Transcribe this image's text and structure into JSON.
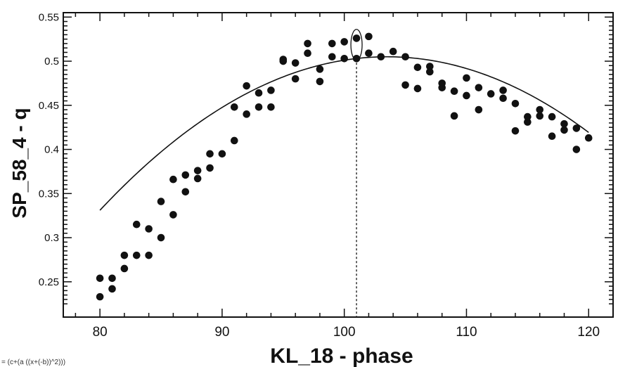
{
  "chart_data": {
    "type": "scatter",
    "title": "",
    "xlabel": "KL_18 - phase",
    "ylabel": "SP_58_4 - q",
    "xlim": [
      77,
      122
    ],
    "ylim": [
      0.21,
      0.555
    ],
    "xticks": [
      80,
      90,
      100,
      110,
      120
    ],
    "xtick_labels": [
      "80",
      "90",
      "100",
      "110",
      "120"
    ],
    "yticks": [
      0.25,
      0.3,
      0.35,
      0.4,
      0.45,
      0.5,
      0.55
    ],
    "ytick_labels": [
      "0.25",
      "0.3",
      "0.35",
      "0.4",
      "0.45",
      "0.5",
      "0.55"
    ],
    "grid": false,
    "legend": "none",
    "formula": "= (c+(a ((x+(-b))^2)))",
    "fit": {
      "type": "quadratic",
      "vertex_x": 103.5,
      "vertex_y": 0.505,
      "a": -0.000315
    },
    "peak_marker_x": 101,
    "circled_point": {
      "x": 101,
      "y": 0.505
    },
    "colors": {
      "points": "#111111",
      "curve": "#111111",
      "axes": "#111111"
    },
    "x": [
      80,
      80,
      81,
      81,
      82,
      82,
      83,
      83,
      84,
      84,
      85,
      85,
      86,
      86,
      87,
      87,
      88,
      88,
      89,
      89,
      90,
      91,
      91,
      92,
      92,
      93,
      93,
      94,
      94,
      95,
      95,
      96,
      96,
      97,
      97,
      98,
      98,
      99,
      99,
      100,
      100,
      101,
      101,
      102,
      102,
      103,
      104,
      105,
      105,
      106,
      106,
      107,
      107,
      108,
      108,
      109,
      109,
      110,
      110,
      111,
      111,
      112,
      113,
      113,
      114,
      114,
      115,
      115,
      116,
      116,
      117,
      117,
      118,
      118,
      119,
      119,
      120
    ],
    "y": [
      0.233,
      0.254,
      0.242,
      0.254,
      0.265,
      0.28,
      0.28,
      0.315,
      0.28,
      0.31,
      0.3,
      0.341,
      0.326,
      0.366,
      0.352,
      0.371,
      0.367,
      0.376,
      0.379,
      0.395,
      0.395,
      0.41,
      0.448,
      0.44,
      0.472,
      0.448,
      0.464,
      0.448,
      0.467,
      0.5,
      0.502,
      0.48,
      0.498,
      0.509,
      0.52,
      0.477,
      0.491,
      0.505,
      0.52,
      0.503,
      0.522,
      0.503,
      0.526,
      0.509,
      0.528,
      0.505,
      0.511,
      0.473,
      0.505,
      0.469,
      0.493,
      0.488,
      0.494,
      0.47,
      0.475,
      0.438,
      0.466,
      0.461,
      0.481,
      0.445,
      0.47,
      0.463,
      0.458,
      0.467,
      0.421,
      0.452,
      0.431,
      0.437,
      0.438,
      0.445,
      0.415,
      0.437,
      0.422,
      0.429,
      0.4,
      0.424,
      0.413
    ]
  }
}
